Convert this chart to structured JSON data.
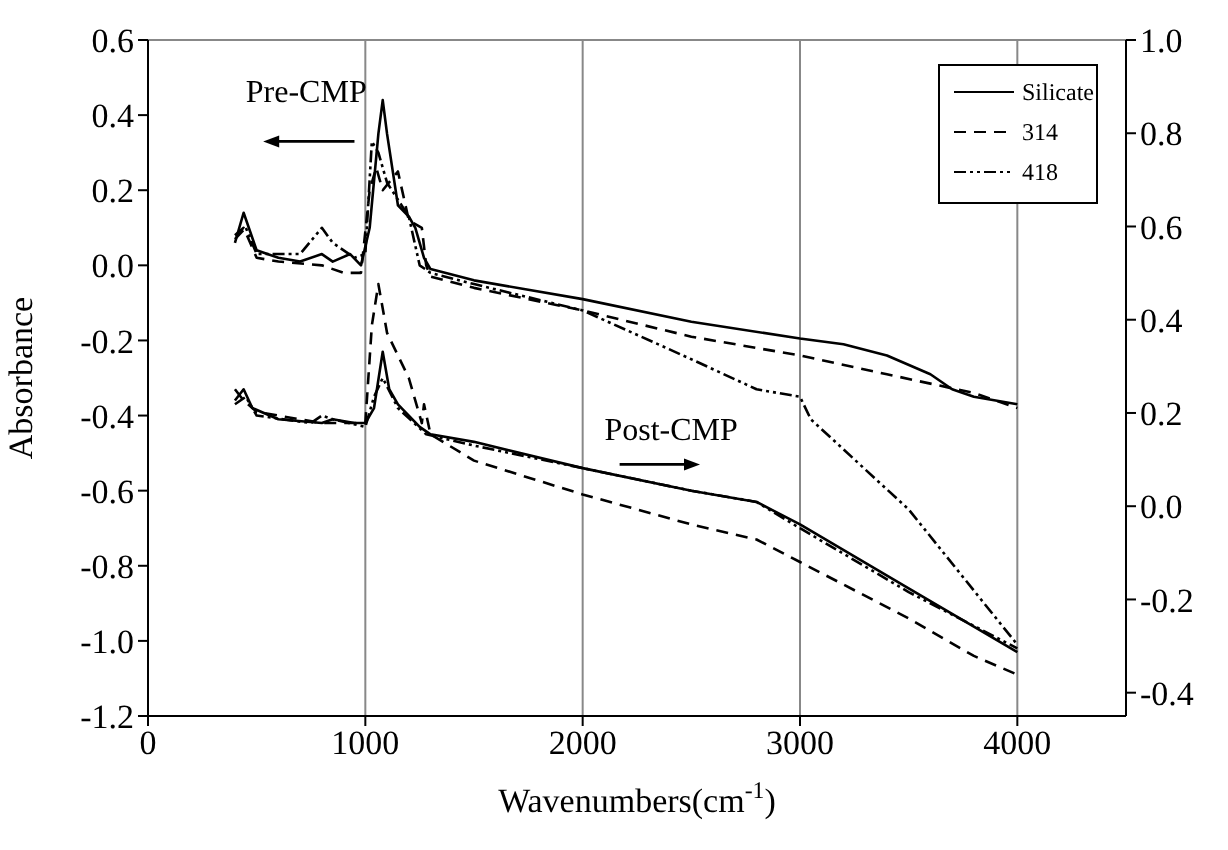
{
  "chart_data": {
    "type": "line",
    "xlabel": "Wavenumbers(cm$^{-1}$)",
    "ylabel": "Absorbance",
    "xlim": [
      0,
      4500
    ],
    "xticks": [
      0,
      1000,
      2000,
      3000,
      4000
    ],
    "ylim": [
      -1.2,
      0.6
    ],
    "yticks": [
      -1.2,
      {
        "value": -1,
        "label": "-1.0"
      },
      -0.8,
      -0.6,
      -0.4,
      -0.2,
      {
        "value": 0,
        "label": "0.0"
      },
      0.2,
      0.4,
      0.6
    ],
    "y2lim": [
      -0.45,
      1.0
    ],
    "y2ticks": [
      -0.4,
      -0.2,
      {
        "value": 0,
        "label": "0.0"
      },
      0.2,
      0.4,
      0.6,
      0.8,
      {
        "value": 1,
        "label": "1.0"
      }
    ],
    "grid": true,
    "legend": "top right",
    "marker": "none",
    "annotations": [
      "Pre-CMP",
      "Post-CMP"
    ],
    "series": [
      {
        "name": "Silicate",
        "color": "#000000",
        "line_style": "solid",
        "x": [
          400,
          440,
          500,
          600,
          700,
          800,
          850,
          930,
          980,
          1020,
          1060,
          1080,
          1100,
          1150,
          1200,
          1230,
          1270,
          1300,
          1500,
          2000,
          2500,
          3000,
          3200,
          3400,
          3600,
          3700,
          3800,
          4000
        ],
        "values": [
          0.06,
          0.14,
          0.04,
          0.02,
          0.01,
          0.03,
          0.01,
          0.03,
          0.0,
          0.1,
          0.35,
          0.44,
          0.35,
          0.16,
          0.13,
          0.1,
          0.02,
          -0.01,
          -0.04,
          -0.09,
          -0.15,
          -0.195,
          -0.21,
          -0.24,
          -0.29,
          -0.33,
          -0.35,
          -0.37
        ]
      },
      {
        "name": "314",
        "color": "#000000",
        "line_style": "dashed",
        "x": [
          400,
          440,
          500,
          600,
          800,
          900,
          980,
          1020,
          1050,
          1080,
          1150,
          1200,
          1260,
          1280,
          1300,
          1500,
          2000,
          2500,
          3000,
          3400,
          3800,
          4000
        ],
        "values": [
          0.08,
          0.1,
          0.02,
          0.01,
          0.0,
          -0.02,
          -0.02,
          0.2,
          0.26,
          0.2,
          0.25,
          0.12,
          0.1,
          0.0,
          -0.03,
          -0.06,
          -0.12,
          -0.19,
          -0.24,
          -0.29,
          -0.34,
          -0.38
        ]
      },
      {
        "name": "418",
        "color": "#000000",
        "line_style": "dotted",
        "x": [
          400,
          450,
          500,
          700,
          800,
          850,
          950,
          1000,
          1030,
          1060,
          1100,
          1200,
          1250,
          1300,
          1500,
          2000,
          2500,
          2800,
          3000,
          3050,
          3500,
          4000
        ],
        "values": [
          0.07,
          0.1,
          0.03,
          0.03,
          0.1,
          0.06,
          0.02,
          0.03,
          0.33,
          0.3,
          0.22,
          0.13,
          0.0,
          -0.02,
          -0.05,
          -0.12,
          -0.25,
          -0.33,
          -0.35,
          -0.41,
          -0.65,
          -1.01
        ]
      },
      {
        "color": "#000000",
        "line_style": "solid",
        "x": [
          400,
          440,
          480,
          600,
          800,
          850,
          950,
          1000,
          1040,
          1080,
          1110,
          1150,
          1250,
          1300,
          1500,
          2000,
          2500,
          2800,
          3000,
          3500,
          4000
        ],
        "values": [
          -0.36,
          -0.33,
          -0.38,
          -0.41,
          -0.42,
          -0.41,
          -0.42,
          -0.42,
          -0.38,
          -0.23,
          -0.33,
          -0.37,
          -0.43,
          -0.45,
          -0.47,
          -0.54,
          -0.6,
          -0.63,
          -0.69,
          -0.86,
          -1.03
        ]
      },
      {
        "color": "#000000",
        "line_style": "dashed",
        "x": [
          400,
          440,
          500,
          800,
          1000,
          1030,
          1060,
          1100,
          1200,
          1260,
          1270,
          1300,
          1500,
          2000,
          2500,
          2800,
          3000,
          3500,
          3800,
          4000
        ],
        "values": [
          -0.33,
          -0.36,
          -0.39,
          -0.42,
          -0.42,
          -0.16,
          -0.05,
          -0.18,
          -0.3,
          -0.42,
          -0.37,
          -0.45,
          -0.52,
          -0.61,
          -0.69,
          -0.73,
          -0.79,
          -0.94,
          -1.04,
          -1.09
        ]
      },
      {
        "color": "#000000",
        "line_style": "dotted",
        "x": [
          400,
          450,
          500,
          750,
          800,
          850,
          1000,
          1040,
          1080,
          1150,
          1280,
          1500,
          2000,
          2500,
          2800,
          3000,
          3500,
          4000
        ],
        "values": [
          -0.37,
          -0.35,
          -0.4,
          -0.42,
          -0.4,
          -0.41,
          -0.43,
          -0.35,
          -0.3,
          -0.38,
          -0.45,
          -0.48,
          -0.54,
          -0.6,
          -0.63,
          -0.7,
          -0.87,
          -1.02
        ]
      }
    ]
  }
}
